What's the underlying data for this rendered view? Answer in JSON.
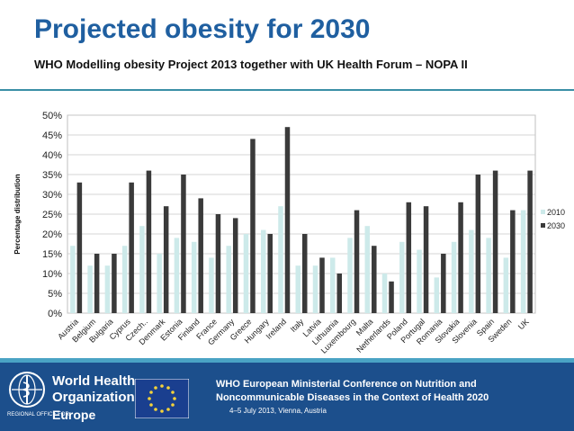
{
  "header": {
    "title": "Projected obesity for 2030",
    "subtitle": "WHO Modelling obesity Project 2013 together with UK Health Forum – NOPA II"
  },
  "colors": {
    "title": "#1f5fa0",
    "series_2010": "#cdeaea",
    "series_2030": "#3a3a3a",
    "footer": "#1c4f8c",
    "rule": "#3a8fa6"
  },
  "chart_data": {
    "type": "bar",
    "ylabel": "Percentage distribution",
    "ylim": [
      0,
      50
    ],
    "yticks": [
      "0%",
      "5%",
      "10%",
      "15%",
      "20%",
      "25%",
      "30%",
      "35%",
      "40%",
      "45%",
      "50%"
    ],
    "grid": true,
    "legend_position": "right",
    "categories": [
      "Austria",
      "Belgium",
      "Bulgaria",
      "Cyprus",
      "Czech..",
      "Denmark",
      "Estonia",
      "Finland",
      "France",
      "Germany",
      "Greece",
      "Hungary",
      "Ireland",
      "Italy",
      "Latvia",
      "Lithuania",
      "Luxembourg",
      "Malta",
      "Netherlands",
      "Poland",
      "Portugal",
      "Romania",
      "Slovakia",
      "Slovenia",
      "Spain",
      "Sweden",
      "UK"
    ],
    "series": [
      {
        "name": "2010",
        "values": [
          17,
          12,
          12,
          17,
          22,
          15,
          19,
          18,
          14,
          17,
          20,
          21,
          27,
          12,
          12,
          14,
          19,
          22,
          10,
          18,
          16,
          9,
          18,
          21,
          19,
          14,
          26
        ]
      },
      {
        "name": "2030",
        "values": [
          33,
          15,
          15,
          33,
          36,
          27,
          35,
          29,
          25,
          24,
          44,
          20,
          47,
          20,
          14,
          10,
          26,
          17,
          8,
          28,
          27,
          15,
          28,
          35,
          36,
          26,
          36
        ]
      }
    ]
  },
  "footer": {
    "who_line1": "World Health",
    "who_line2": "Organization",
    "who_region": "REGIONAL OFFICE FOR",
    "who_europe": "Europe",
    "conference_line1": "WHO European Ministerial Conference on Nutrition and",
    "conference_line2": "Noncommunicable Diseases in the Context of Health 2020",
    "conference_line3": "4–5 July 2013, Vienna, Austria"
  }
}
